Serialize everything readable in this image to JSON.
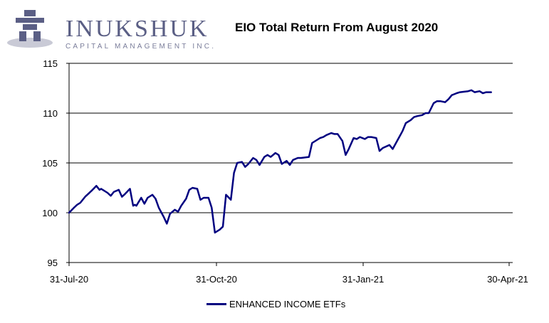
{
  "logo": {
    "wordmark": "INUKSHUK",
    "tagline": "CAPITAL MANAGEMENT INC."
  },
  "colors": {
    "series": "#000080",
    "logo": "#5b5f85",
    "grid": "#000000"
  },
  "chart_data": {
    "type": "line",
    "title": "EIO Total Return From August 2020",
    "xlabel": "",
    "ylabel": "",
    "ylim": [
      95,
      115
    ],
    "yticks": [
      95,
      100,
      105,
      110,
      115
    ],
    "xlim": [
      "2020-07-31",
      "2021-04-30"
    ],
    "xticks": [
      "31-Jul-20",
      "31-Oct-20",
      "31-Jan-21",
      "30-Apr-21"
    ],
    "grid": true,
    "legend_position": "bottom",
    "series": [
      {
        "name": "ENHANCED INCOME ETFs",
        "x": [
          "2020-07-31",
          "2020-08-03",
          "2020-08-05",
          "2020-08-07",
          "2020-08-10",
          "2020-08-12",
          "2020-08-14",
          "2020-08-17",
          "2020-08-19",
          "2020-08-20",
          "2020-08-21",
          "2020-08-24",
          "2020-08-26",
          "2020-08-28",
          "2020-08-31",
          "2020-09-02",
          "2020-09-04",
          "2020-09-07",
          "2020-09-09",
          "2020-09-10",
          "2020-09-11",
          "2020-09-14",
          "2020-09-16",
          "2020-09-18",
          "2020-09-21",
          "2020-09-23",
          "2020-09-25",
          "2020-09-28",
          "2020-09-30",
          "2020-10-02",
          "2020-10-05",
          "2020-10-07",
          "2020-10-09",
          "2020-10-12",
          "2020-10-14",
          "2020-10-16",
          "2020-10-19",
          "2020-10-21",
          "2020-10-23",
          "2020-10-26",
          "2020-10-28",
          "2020-10-30",
          "2020-11-02",
          "2020-11-04",
          "2020-11-06",
          "2020-11-09",
          "2020-11-11",
          "2020-11-13",
          "2020-11-16",
          "2020-11-18",
          "2020-11-20",
          "2020-11-23",
          "2020-11-25",
          "2020-11-27",
          "2020-11-30",
          "2020-12-02",
          "2020-12-04",
          "2020-12-07",
          "2020-12-09",
          "2020-12-11",
          "2020-12-14",
          "2020-12-16",
          "2020-12-18",
          "2020-12-21",
          "2020-12-23",
          "2020-12-28",
          "2020-12-30",
          "2021-01-04",
          "2021-01-06",
          "2021-01-08",
          "2021-01-11",
          "2021-01-13",
          "2021-01-15",
          "2021-01-18",
          "2021-01-20",
          "2021-01-22",
          "2021-01-25",
          "2021-01-27",
          "2021-01-29",
          "2021-02-01",
          "2021-02-03",
          "2021-02-05",
          "2021-02-08",
          "2021-02-10",
          "2021-02-12",
          "2021-02-16",
          "2021-02-18",
          "2021-02-22",
          "2021-02-24",
          "2021-02-26",
          "2021-03-01",
          "2021-03-03",
          "2021-03-05",
          "2021-03-08",
          "2021-03-10",
          "2021-03-12",
          "2021-03-15",
          "2021-03-17",
          "2021-03-19",
          "2021-03-22",
          "2021-03-24",
          "2021-03-26",
          "2021-03-29",
          "2021-03-31",
          "2021-04-05",
          "2021-04-07",
          "2021-04-09",
          "2021-04-12",
          "2021-04-14",
          "2021-04-16",
          "2021-04-19"
        ],
        "values": [
          100.0,
          100.5,
          100.8,
          101.0,
          101.6,
          101.9,
          102.2,
          102.7,
          102.3,
          102.4,
          102.3,
          102.0,
          101.7,
          102.1,
          102.3,
          101.6,
          101.9,
          102.4,
          100.7,
          100.8,
          100.7,
          101.5,
          100.9,
          101.5,
          101.8,
          101.4,
          100.5,
          99.6,
          98.9,
          99.9,
          100.3,
          100.1,
          100.7,
          101.4,
          102.3,
          102.5,
          102.4,
          101.3,
          101.5,
          101.5,
          100.5,
          98.0,
          98.3,
          98.6,
          101.8,
          101.3,
          104.0,
          105.0,
          105.1,
          104.6,
          104.9,
          105.5,
          105.3,
          104.8,
          105.6,
          105.8,
          105.6,
          106.0,
          105.8,
          104.9,
          105.2,
          104.8,
          105.3,
          105.5,
          105.5,
          105.6,
          107.0,
          107.5,
          107.6,
          107.8,
          108.0,
          107.9,
          107.9,
          107.2,
          105.8,
          106.4,
          107.5,
          107.4,
          107.6,
          107.4,
          107.6,
          107.6,
          107.5,
          106.2,
          106.5,
          106.8,
          106.4,
          107.6,
          108.2,
          109.0,
          109.3,
          109.6,
          109.7,
          109.8,
          110.0,
          110.0,
          111.0,
          111.2,
          111.2,
          111.1,
          111.4,
          111.8,
          112.0,
          112.1,
          112.2,
          112.3,
          112.1,
          112.2,
          112.0,
          112.1,
          112.1
        ]
      }
    ]
  }
}
